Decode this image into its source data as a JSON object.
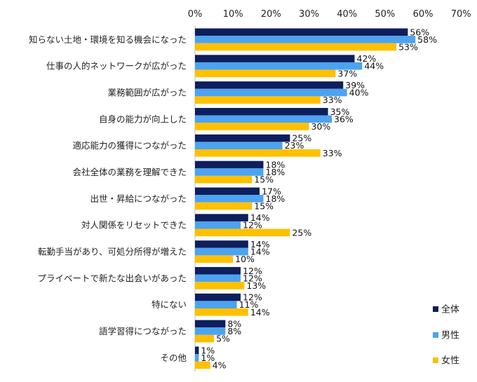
{
  "chart_data": {
    "type": "bar",
    "orientation": "horizontal",
    "title": "",
    "xlabel": "",
    "ylabel": "",
    "xlim": [
      0,
      70
    ],
    "ticks": [
      "0%",
      "10%",
      "20%",
      "30%",
      "40%",
      "50%",
      "60%",
      "70%"
    ],
    "tick_values": [
      0,
      10,
      20,
      30,
      40,
      50,
      60,
      70
    ],
    "grid": false,
    "legend_position": "bottom-right",
    "categories": [
      "知らない土地・環境を知る機会になった",
      "仕事の人的ネットワークが広がった",
      "業務範囲が広がった",
      "自身の能力が向上した",
      "適応能力の獲得につながった",
      "会社全体の業務を理解できた",
      "出世・昇給につながった",
      "対人関係をリセットできた",
      "転勤手当があり、可処分所得が増えた",
      "プライベートで新たな出会いがあった",
      "特にない",
      "語学習得につながった",
      "その他"
    ],
    "series": [
      {
        "name": "全体",
        "color": "#0d1f5c",
        "values": [
          56,
          42,
          39,
          35,
          25,
          18,
          17,
          14,
          14,
          12,
          12,
          8,
          1
        ]
      },
      {
        "name": "男性",
        "color": "#4da3f0",
        "values": [
          58,
          44,
          40,
          36,
          23,
          18,
          18,
          12,
          14,
          12,
          11,
          8,
          1
        ]
      },
      {
        "name": "女性",
        "color": "#ffc000",
        "values": [
          53,
          37,
          33,
          30,
          33,
          15,
          15,
          25,
          10,
          13,
          14,
          5,
          4
        ]
      }
    ],
    "value_suffix": "%"
  }
}
